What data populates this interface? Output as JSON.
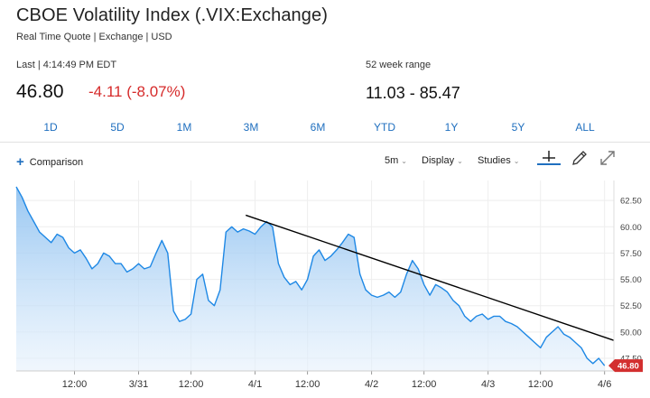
{
  "header": {
    "title": "CBOE Volatility Index (.VIX:Exchange)",
    "subtitle": "Real Time Quote | Exchange | USD"
  },
  "quote": {
    "last_label": "Last | 4:14:49 PM EDT",
    "price": "46.80",
    "change": "-4.11 (-8.07%)",
    "range_label": "52 week range",
    "range_value": "11.03 - 85.47"
  },
  "colors": {
    "accent": "#1f6fbf",
    "negative": "#d62b2b",
    "line": "#1e88e5",
    "area_top": "#8cc0f0",
    "area_bottom": "#e6f1fc",
    "trendline": "#000000",
    "price_tag": "#d32f2f"
  },
  "range_buttons": [
    "1D",
    "5D",
    "1M",
    "3M",
    "6M",
    "YTD",
    "1Y",
    "5Y",
    "ALL"
  ],
  "toolbar": {
    "comparison_label": "Comparison",
    "plus_icon": "plus-icon",
    "interval_label": "5m",
    "display_label": "Display",
    "studies_label": "Studies",
    "icons": [
      "crosshair-icon",
      "pencil-icon",
      "expand-icon"
    ]
  },
  "chart_data": {
    "type": "area",
    "y_ticks": [
      "62.50",
      "60.00",
      "57.50",
      "55.00",
      "52.50",
      "50.00",
      "47.50"
    ],
    "ylim": [
      46.3,
      64.4
    ],
    "grid": true,
    "x_ticks": [
      {
        "label": "12:00",
        "x": 0.45
      },
      {
        "label": "3/31",
        "x": 1.0
      },
      {
        "label": "12:00",
        "x": 1.45
      },
      {
        "label": "4/1",
        "x": 2.0
      },
      {
        "label": "12:00",
        "x": 2.45
      },
      {
        "label": "4/2",
        "x": 3.0
      },
      {
        "label": "12:00",
        "x": 3.45
      },
      {
        "label": "4/3",
        "x": 4.0
      },
      {
        "label": "12:00",
        "x": 4.45
      },
      {
        "label": "4/6",
        "x": 5.0
      }
    ],
    "xlim": [
      -0.05,
      5.08
    ],
    "last_price": "46.80",
    "series": [
      {
        "x": [
          -0.05,
          0.0,
          0.05,
          0.1,
          0.15,
          0.2,
          0.25,
          0.3,
          0.35,
          0.4,
          0.45,
          0.5,
          0.55,
          0.6,
          0.65,
          0.7,
          0.75,
          0.8,
          0.85,
          0.9,
          0.95,
          1.0,
          1.05,
          1.1,
          1.15,
          1.2,
          1.25,
          1.3,
          1.35,
          1.4,
          1.45,
          1.5,
          1.55,
          1.6,
          1.65,
          1.7,
          1.75,
          1.8,
          1.85,
          1.9,
          1.95,
          2.0,
          2.05,
          2.1,
          2.15,
          2.2,
          2.25,
          2.3,
          2.35,
          2.4,
          2.45,
          2.5,
          2.55,
          2.6,
          2.65,
          2.7,
          2.75,
          2.8,
          2.85,
          2.9,
          2.95,
          3.0,
          3.05,
          3.1,
          3.15,
          3.2,
          3.25,
          3.3,
          3.35,
          3.4,
          3.45,
          3.5,
          3.55,
          3.6,
          3.65,
          3.7,
          3.75,
          3.8,
          3.85,
          3.9,
          3.95,
          4.0,
          4.05,
          4.1,
          4.15,
          4.2,
          4.25,
          4.3,
          4.35,
          4.4,
          4.45,
          4.5,
          4.55,
          4.6,
          4.65,
          4.7,
          4.75,
          4.8,
          4.85,
          4.9,
          4.95,
          5.0
        ],
        "values": [
          63.8,
          62.8,
          61.5,
          60.5,
          59.5,
          59.0,
          58.5,
          59.3,
          59.0,
          58.0,
          57.5,
          57.8,
          57.0,
          56.0,
          56.5,
          57.5,
          57.2,
          56.5,
          56.5,
          55.7,
          56.0,
          56.5,
          56.0,
          56.2,
          57.5,
          58.7,
          57.5,
          52.0,
          51.0,
          51.2,
          51.7,
          55.0,
          55.5,
          53.0,
          52.5,
          54.0,
          59.5,
          60.0,
          59.5,
          59.8,
          59.6,
          59.3,
          60.0,
          60.5,
          60.0,
          56.5,
          55.2,
          54.5,
          54.8,
          54.0,
          55.0,
          57.2,
          57.8,
          56.8,
          57.2,
          57.8,
          58.5,
          59.3,
          59.0,
          55.5,
          54.0,
          53.5,
          53.3,
          53.5,
          53.8,
          53.3,
          53.8,
          55.5,
          56.8,
          56.0,
          54.5,
          53.5,
          54.5,
          54.2,
          53.8,
          53.0,
          52.5,
          51.5,
          51.0,
          51.5,
          51.7,
          51.2,
          51.5,
          51.5,
          51.0,
          50.8,
          50.5,
          50.0,
          49.5,
          49.0,
          48.5,
          49.5,
          50.0,
          50.5,
          49.8,
          49.5,
          49.0,
          48.5,
          47.5,
          47.0,
          47.5,
          46.8
        ]
      }
    ],
    "trendline": {
      "x": [
        1.92,
        5.08
      ],
      "y": [
        61.1,
        49.2
      ]
    }
  }
}
